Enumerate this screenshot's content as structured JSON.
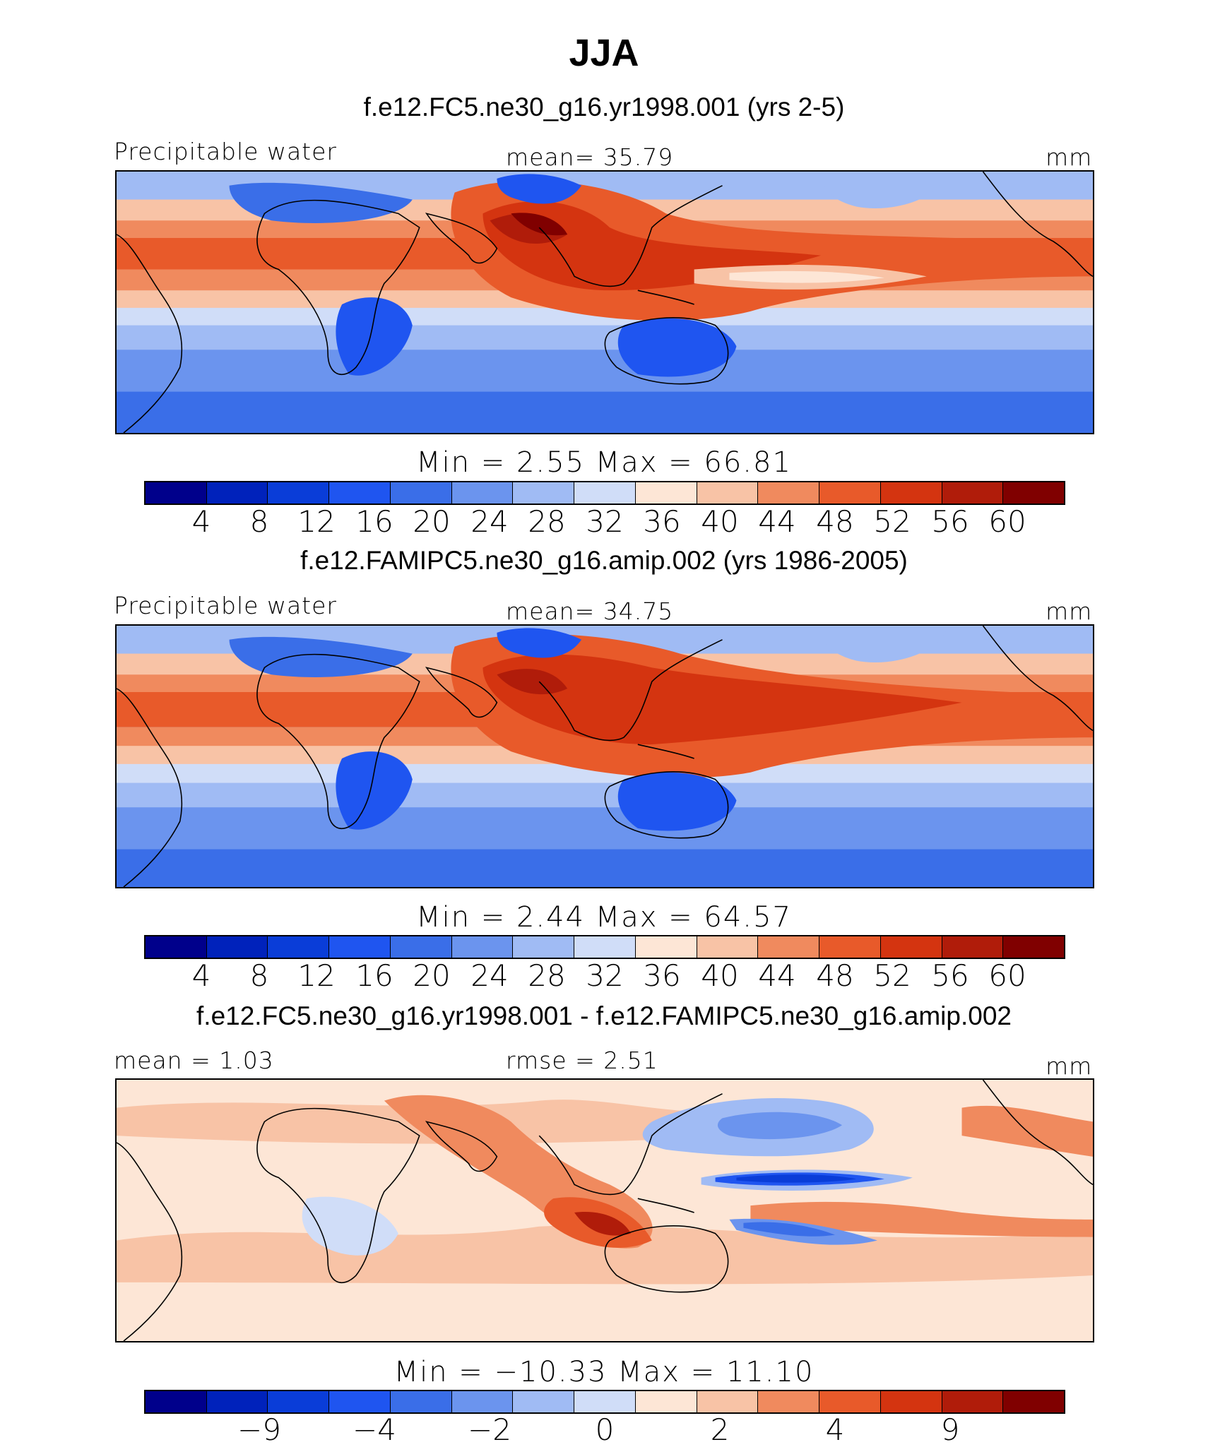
{
  "title": "JJA",
  "panels": [
    {
      "run_title": "f.e12.FC5.ne30_g16.yr1998.001 (yrs 2-5)",
      "left_label": "Precipitable water",
      "center_label": "mean=   35.79",
      "units": "mm",
      "min_max": "Min =     2.55  Max =   66.81",
      "colorbar_labels": [
        "4",
        "8",
        "12",
        "16",
        "20",
        "24",
        "28",
        "32",
        "36",
        "40",
        "44",
        "48",
        "52",
        "56",
        "60"
      ]
    },
    {
      "run_title": "f.e12.FAMIPC5.ne30_g16.amip.002 (yrs 1986-2005)",
      "left_label": "Precipitable water",
      "center_label": "mean=   34.75",
      "units": "mm",
      "min_max": "Min =     2.44  Max =   64.57",
      "colorbar_labels": [
        "4",
        "8",
        "12",
        "16",
        "20",
        "24",
        "28",
        "32",
        "36",
        "40",
        "44",
        "48",
        "52",
        "56",
        "60"
      ]
    },
    {
      "run_title": "f.e12.FC5.ne30_g16.yr1998.001 - f.e12.FAMIPC5.ne30_g16.amip.002",
      "left_label": "mean =    1.03",
      "center_label": "rmse =    2.51",
      "units": "mm",
      "min_max": "Min = −10.33  Max =   11.10",
      "colorbar_labels": [
        "−9",
        "−4",
        "−2",
        "0",
        "2",
        "4",
        "9"
      ]
    }
  ],
  "colors": {
    "abs_scale": [
      "#00008b",
      "#0022bb",
      "#0a3dd8",
      "#1f55f0",
      "#3a6ee8",
      "#6b94ee",
      "#a0bbf4",
      "#d0ddf8",
      "#fde6d6",
      "#f8c3a6",
      "#f08a5e",
      "#e85a2a",
      "#d43410",
      "#b01c0a",
      "#800000"
    ],
    "diff_scale": [
      "#00008b",
      "#0022bb",
      "#0a3dd8",
      "#1f55f0",
      "#3a6ee8",
      "#6b94ee",
      "#a0bbf4",
      "#d0ddf8",
      "#fde6d6",
      "#f8c3a6",
      "#f08a5e",
      "#e85a2a",
      "#d43410",
      "#b01c0a",
      "#800000"
    ]
  }
}
